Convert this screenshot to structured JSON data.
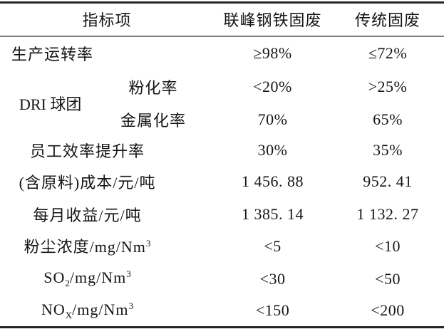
{
  "table": {
    "header": {
      "indicator": "指标项",
      "lianfeng": "联峰钢铁固废",
      "traditional": "传统固废"
    },
    "rows": [
      {
        "label": "生产运转率",
        "v1": "≥98%",
        "v2": "≤72%"
      },
      {
        "group": "DRI 球团",
        "label": "粉化率",
        "v1": "<20%",
        "v2": ">25%"
      },
      {
        "label": "金属化率",
        "v1": "70%",
        "v2": "65%"
      },
      {
        "label": "员工效率提升率",
        "v1": "30%",
        "v2": "35%"
      },
      {
        "label": "(含原料)成本/元/吨",
        "v1": "1 456. 88",
        "v2": "952. 41"
      },
      {
        "label": "每月收益/元/吨",
        "v1": "1 385. 14",
        "v2": "1 132. 27"
      },
      {
        "parts": {
          "base": "粉尘浓度/mg/Nm",
          "sub": "",
          "mid": "",
          "sup": "3"
        },
        "v1": "<5",
        "v2": "<10"
      },
      {
        "parts": {
          "base": "SO",
          "sub": "2",
          "mid": "/mg/Nm",
          "sup": "3"
        },
        "v1": "<30",
        "v2": "<50"
      },
      {
        "parts": {
          "base": "NO",
          "sub": "X",
          "mid": "/mg/Nm",
          "sup": "3"
        },
        "v1": "<150",
        "v2": "<200"
      }
    ],
    "rule_colors": {
      "outer_rule": "#242424",
      "header_rule": "#7d7d7d"
    }
  }
}
